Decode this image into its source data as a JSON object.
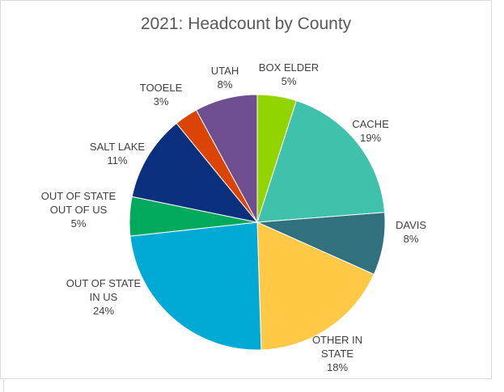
{
  "chart_data": {
    "type": "pie",
    "title": "2021: Headcount by County",
    "slices": [
      {
        "label": [
          "BOX ELDER"
        ],
        "percent_label": "5%",
        "value": 5,
        "color": "#92d400"
      },
      {
        "label": [
          "CACHE"
        ],
        "percent_label": "19%",
        "value": 19,
        "color": "#40c1ac"
      },
      {
        "label": [
          "DAVIS"
        ],
        "percent_label": "8%",
        "value": 8,
        "color": "#31707d"
      },
      {
        "label": [
          "OTHER IN",
          "STATE"
        ],
        "percent_label": "18%",
        "value": 18,
        "color": "#ffc845"
      },
      {
        "label": [
          "OUT OF STATE",
          "IN US"
        ],
        "percent_label": "24%",
        "value": 24,
        "color": "#00aad4"
      },
      {
        "label": [
          "OUT OF STATE",
          "OUT OF US"
        ],
        "percent_label": "5%",
        "value": 5,
        "color": "#00a95c"
      },
      {
        "label": [
          "SALT LAKE"
        ],
        "percent_label": "11%",
        "value": 11,
        "color": "#0a2f7f"
      },
      {
        "label": [
          "TOOELE"
        ],
        "percent_label": "3%",
        "value": 3,
        "color": "#dc4405"
      },
      {
        "label": [
          "UTAH"
        ],
        "percent_label": "8%",
        "value": 8,
        "color": "#6f4e8f"
      }
    ],
    "start_angle": "12 o'clock",
    "direction": "clockwise",
    "legend": "none (labels outside slices)"
  }
}
